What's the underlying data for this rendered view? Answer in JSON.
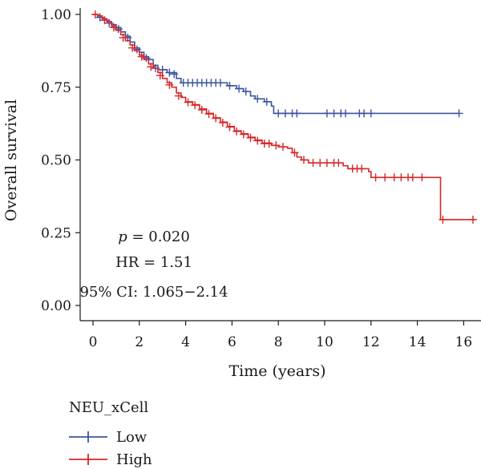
{
  "chart_data": {
    "type": "line",
    "xlabel": "Time (years)",
    "ylabel": "Overall survival",
    "xlim": [
      0,
      16.5
    ],
    "ylim": [
      0,
      1
    ],
    "x_ticks": [
      "0",
      "2",
      "4",
      "6",
      "8",
      "10",
      "12",
      "14",
      "16"
    ],
    "y_ticks": [
      "0.00",
      "0.25",
      "0.50",
      "0.75",
      "1.00"
    ],
    "grid": false,
    "annotations": {
      "p_symbol": "p",
      "p_value": " = 0.020",
      "hr": "HR = 1.51",
      "ci": "95% CI: 1.065−2.14"
    },
    "legend": {
      "title": "NEU_xCell",
      "placement": "bottom-left"
    },
    "series": [
      {
        "name": "Low",
        "color": "#3b56a0",
        "steps": [
          [
            0,
            1.0
          ],
          [
            0.2,
            0.99
          ],
          [
            0.4,
            0.985
          ],
          [
            0.6,
            0.975
          ],
          [
            0.8,
            0.965
          ],
          [
            1.0,
            0.955
          ],
          [
            1.2,
            0.94
          ],
          [
            1.4,
            0.925
          ],
          [
            1.6,
            0.905
          ],
          [
            1.8,
            0.885
          ],
          [
            2.0,
            0.87
          ],
          [
            2.2,
            0.855
          ],
          [
            2.4,
            0.845
          ],
          [
            2.6,
            0.825
          ],
          [
            2.8,
            0.81
          ],
          [
            3.2,
            0.8
          ],
          [
            3.6,
            0.78
          ],
          [
            3.8,
            0.765
          ],
          [
            5.8,
            0.755
          ],
          [
            6.2,
            0.745
          ],
          [
            6.5,
            0.735
          ],
          [
            6.8,
            0.72
          ],
          [
            7.0,
            0.71
          ],
          [
            7.4,
            0.7
          ],
          [
            7.7,
            0.685
          ],
          [
            7.8,
            0.66
          ],
          [
            15.8,
            0.66
          ]
        ],
        "censors": [
          [
            0.3,
            0.99
          ],
          [
            0.7,
            0.97
          ],
          [
            1.1,
            0.95
          ],
          [
            1.5,
            0.92
          ],
          [
            1.9,
            0.88
          ],
          [
            2.3,
            0.85
          ],
          [
            2.7,
            0.815
          ],
          [
            3.0,
            0.81
          ],
          [
            3.3,
            0.8
          ],
          [
            3.5,
            0.795
          ],
          [
            3.9,
            0.765
          ],
          [
            4.1,
            0.765
          ],
          [
            4.3,
            0.765
          ],
          [
            4.5,
            0.765
          ],
          [
            4.7,
            0.765
          ],
          [
            4.9,
            0.765
          ],
          [
            5.1,
            0.765
          ],
          [
            5.3,
            0.765
          ],
          [
            5.5,
            0.765
          ],
          [
            5.9,
            0.755
          ],
          [
            6.3,
            0.745
          ],
          [
            6.6,
            0.735
          ],
          [
            7.1,
            0.71
          ],
          [
            7.5,
            0.7
          ],
          [
            8.0,
            0.66
          ],
          [
            8.3,
            0.66
          ],
          [
            8.6,
            0.66
          ],
          [
            8.8,
            0.66
          ],
          [
            10.1,
            0.66
          ],
          [
            10.4,
            0.66
          ],
          [
            10.7,
            0.66
          ],
          [
            10.9,
            0.66
          ],
          [
            11.5,
            0.66
          ],
          [
            11.7,
            0.66
          ],
          [
            12.0,
            0.66
          ],
          [
            15.8,
            0.66
          ]
        ]
      },
      {
        "name": "High",
        "color": "#d62728",
        "steps": [
          [
            0,
            1.0
          ],
          [
            0.2,
            0.995
          ],
          [
            0.4,
            0.985
          ],
          [
            0.6,
            0.975
          ],
          [
            0.8,
            0.96
          ],
          [
            1.0,
            0.945
          ],
          [
            1.2,
            0.93
          ],
          [
            1.4,
            0.91
          ],
          [
            1.6,
            0.895
          ],
          [
            1.8,
            0.875
          ],
          [
            2.0,
            0.86
          ],
          [
            2.2,
            0.845
          ],
          [
            2.4,
            0.83
          ],
          [
            2.6,
            0.815
          ],
          [
            2.8,
            0.8
          ],
          [
            3.0,
            0.78
          ],
          [
            3.2,
            0.765
          ],
          [
            3.4,
            0.75
          ],
          [
            3.6,
            0.73
          ],
          [
            3.8,
            0.715
          ],
          [
            4.0,
            0.7
          ],
          [
            4.3,
            0.69
          ],
          [
            4.6,
            0.675
          ],
          [
            4.9,
            0.66
          ],
          [
            5.2,
            0.645
          ],
          [
            5.5,
            0.63
          ],
          [
            5.8,
            0.615
          ],
          [
            6.1,
            0.6
          ],
          [
            6.4,
            0.59
          ],
          [
            6.7,
            0.578
          ],
          [
            7.0,
            0.568
          ],
          [
            7.3,
            0.558
          ],
          [
            7.7,
            0.55
          ],
          [
            8.0,
            0.545
          ],
          [
            8.4,
            0.54
          ],
          [
            8.6,
            0.525
          ],
          [
            8.8,
            0.51
          ],
          [
            9.0,
            0.5
          ],
          [
            9.3,
            0.49
          ],
          [
            10.8,
            0.48
          ],
          [
            11.0,
            0.47
          ],
          [
            11.9,
            0.46
          ],
          [
            12.0,
            0.44
          ],
          [
            15.0,
            0.44
          ],
          [
            15.0,
            0.295
          ],
          [
            16.5,
            0.295
          ]
        ],
        "censors": [
          [
            0.1,
            1.0
          ],
          [
            0.5,
            0.98
          ],
          [
            0.9,
            0.955
          ],
          [
            1.3,
            0.92
          ],
          [
            1.7,
            0.885
          ],
          [
            2.1,
            0.855
          ],
          [
            2.5,
            0.82
          ],
          [
            2.9,
            0.79
          ],
          [
            3.3,
            0.758
          ],
          [
            3.7,
            0.72
          ],
          [
            4.1,
            0.698
          ],
          [
            4.4,
            0.688
          ],
          [
            4.7,
            0.672
          ],
          [
            5.0,
            0.658
          ],
          [
            5.3,
            0.643
          ],
          [
            5.6,
            0.628
          ],
          [
            5.9,
            0.613
          ],
          [
            6.2,
            0.598
          ],
          [
            6.5,
            0.588
          ],
          [
            6.8,
            0.576
          ],
          [
            7.1,
            0.566
          ],
          [
            7.4,
            0.556
          ],
          [
            7.6,
            0.556
          ],
          [
            7.9,
            0.55
          ],
          [
            8.2,
            0.545
          ],
          [
            8.7,
            0.525
          ],
          [
            9.1,
            0.5
          ],
          [
            9.5,
            0.49
          ],
          [
            9.8,
            0.49
          ],
          [
            10.1,
            0.49
          ],
          [
            10.4,
            0.49
          ],
          [
            10.6,
            0.49
          ],
          [
            11.2,
            0.47
          ],
          [
            11.4,
            0.47
          ],
          [
            11.6,
            0.47
          ],
          [
            12.2,
            0.44
          ],
          [
            12.6,
            0.44
          ],
          [
            13.0,
            0.44
          ],
          [
            13.3,
            0.44
          ],
          [
            13.6,
            0.44
          ],
          [
            13.8,
            0.44
          ],
          [
            14.2,
            0.44
          ],
          [
            15.1,
            0.295
          ],
          [
            16.4,
            0.295
          ]
        ]
      }
    ]
  }
}
